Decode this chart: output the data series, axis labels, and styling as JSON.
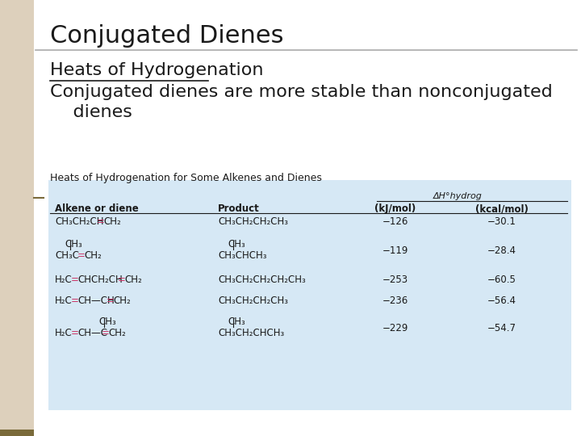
{
  "title": "Conjugated Dienes",
  "heading": "Heats of Hydrogenation",
  "body_text": "Conjugated dienes are more stable than nonconjugated\n    dienes",
  "table_caption": "Heats of Hydrogenation for Some Alkenes and Dienes",
  "sidebar_color": "#ddd0bc",
  "sidebar_bottom_color": "#7a6a3a",
  "bg_color": "#ffffff",
  "table_bg": "#d6e8f5",
  "title_fontsize": 22,
  "heading_fontsize": 16,
  "body_fontsize": 16,
  "table_caption_fontsize": 9,
  "dH_header": "ΔH°hydrog",
  "rows": [
    {
      "kj": "−126",
      "kcal": "−30.1"
    },
    {
      "kj": "−119",
      "kcal": "−28.4"
    },
    {
      "kj": "−253",
      "kcal": "−60.5"
    },
    {
      "kj": "−236",
      "kcal": "−56.4"
    },
    {
      "kj": "−229",
      "kcal": "−54.7"
    }
  ],
  "pink_color": "#cc3366",
  "text_color": "#1a1a1a"
}
